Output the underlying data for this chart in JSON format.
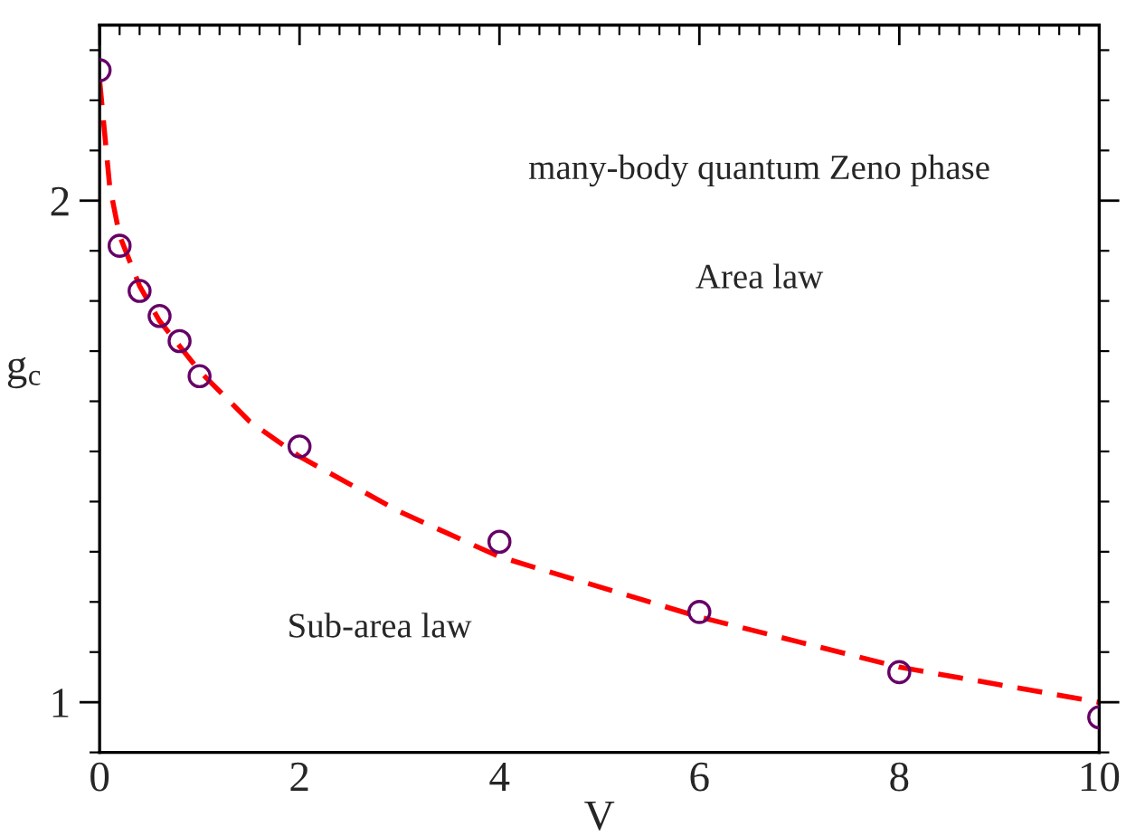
{
  "chart_data": {
    "type": "scatter",
    "xlabel": "V",
    "ylabel": "g$_{c}$",
    "xlim": [
      0,
      10
    ],
    "ylim": [
      0.9,
      2.35
    ],
    "xticks": [
      0,
      2,
      4,
      6,
      8,
      10
    ],
    "yticks": [
      1,
      2
    ],
    "grid": false,
    "legend": false,
    "series": [
      {
        "color": "#660066",
        "marker": "circle",
        "x": [
          0,
          0.2,
          0.4,
          0.6,
          0.8,
          1,
          2,
          4,
          6,
          8,
          10
        ],
        "values": [
          2.26,
          1.91,
          1.82,
          1.77,
          1.72,
          1.65,
          1.51,
          1.32,
          1.18,
          1.06,
          0.97
        ]
      },
      {
        "type": "line",
        "color": "#ff0000",
        "line_style": "dashed",
        "marker": "none",
        "x": [
          0,
          0.1,
          0.2,
          0.4,
          0.6,
          0.8,
          1,
          1.5,
          2,
          3,
          4,
          5,
          6,
          7,
          8,
          9,
          10
        ],
        "values": [
          2.24,
          2.03,
          1.93,
          1.83,
          1.76,
          1.71,
          1.66,
          1.56,
          1.49,
          1.38,
          1.29,
          1.23,
          1.17,
          1.12,
          1.07,
          1.035,
          1.0
        ]
      }
    ],
    "annotations": [
      "many-body quantum Zeno phase",
      "Area law",
      "Sub-area law"
    ]
  }
}
